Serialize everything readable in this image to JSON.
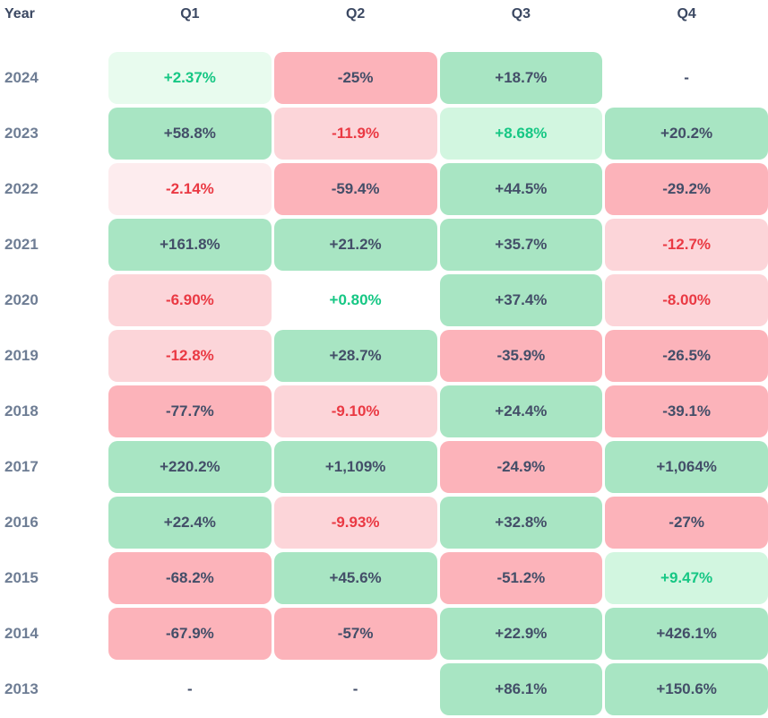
{
  "colors": {
    "positive_text": "#16c784",
    "negative_text": "#ea3943",
    "neutral_text": "#434e68",
    "header_text": "#3b4862",
    "year_text": "#6e7d94",
    "bg_green_strong": "#a8e5c3",
    "bg_green_light": "#d2f6e0",
    "bg_green_faint": "#e8fbee",
    "bg_red_strong": "#fcb3ba",
    "bg_red_light": "#fcd5d9",
    "bg_red_faint": "#fdecee"
  },
  "chart_data": {
    "type": "heatmap",
    "title": "",
    "row_header": "Year",
    "columns": [
      "Q1",
      "Q2",
      "Q3",
      "Q4"
    ],
    "value_unit": "percent",
    "color_scale": "green = positive, red = negative; background intensity grows with magnitude (|v|<1 none, <5 faint, <15 light, >=15 strong); dark text on strong cells, colored text on faint/light cells; '-' = no data",
    "rows": [
      {
        "year": "2024",
        "cells": [
          {
            "text": "+2.37%",
            "value": 2.37
          },
          {
            "text": "-25%",
            "value": -25
          },
          {
            "text": "+18.7%",
            "value": 18.7
          },
          {
            "text": "-",
            "value": null
          }
        ]
      },
      {
        "year": "2023",
        "cells": [
          {
            "text": "+58.8%",
            "value": 58.8
          },
          {
            "text": "-11.9%",
            "value": -11.9
          },
          {
            "text": "+8.68%",
            "value": 8.68
          },
          {
            "text": "+20.2%",
            "value": 20.2
          }
        ]
      },
      {
        "year": "2022",
        "cells": [
          {
            "text": "-2.14%",
            "value": -2.14
          },
          {
            "text": "-59.4%",
            "value": -59.4
          },
          {
            "text": "+44.5%",
            "value": 44.5
          },
          {
            "text": "-29.2%",
            "value": -29.2
          }
        ]
      },
      {
        "year": "2021",
        "cells": [
          {
            "text": "+161.8%",
            "value": 161.8
          },
          {
            "text": "+21.2%",
            "value": 21.2
          },
          {
            "text": "+35.7%",
            "value": 35.7
          },
          {
            "text": "-12.7%",
            "value": -12.7
          }
        ]
      },
      {
        "year": "2020",
        "cells": [
          {
            "text": "-6.90%",
            "value": -6.9
          },
          {
            "text": "+0.80%",
            "value": 0.8
          },
          {
            "text": "+37.4%",
            "value": 37.4
          },
          {
            "text": "-8.00%",
            "value": -8
          }
        ]
      },
      {
        "year": "2019",
        "cells": [
          {
            "text": "-12.8%",
            "value": -12.8
          },
          {
            "text": "+28.7%",
            "value": 28.7
          },
          {
            "text": "-35.9%",
            "value": -35.9
          },
          {
            "text": "-26.5%",
            "value": -26.5
          }
        ]
      },
      {
        "year": "2018",
        "cells": [
          {
            "text": "-77.7%",
            "value": -77.7
          },
          {
            "text": "-9.10%",
            "value": -9.1
          },
          {
            "text": "+24.4%",
            "value": 24.4
          },
          {
            "text": "-39.1%",
            "value": -39.1
          }
        ]
      },
      {
        "year": "2017",
        "cells": [
          {
            "text": "+220.2%",
            "value": 220.2
          },
          {
            "text": "+1,109%",
            "value": 1109
          },
          {
            "text": "-24.9%",
            "value": -24.9
          },
          {
            "text": "+1,064%",
            "value": 1064
          }
        ]
      },
      {
        "year": "2016",
        "cells": [
          {
            "text": "+22.4%",
            "value": 22.4
          },
          {
            "text": "-9.93%",
            "value": -9.93
          },
          {
            "text": "+32.8%",
            "value": 32.8
          },
          {
            "text": "-27%",
            "value": -27
          }
        ]
      },
      {
        "year": "2015",
        "cells": [
          {
            "text": "-68.2%",
            "value": -68.2
          },
          {
            "text": "+45.6%",
            "value": 45.6
          },
          {
            "text": "-51.2%",
            "value": -51.2
          },
          {
            "text": "+9.47%",
            "value": 9.47
          }
        ]
      },
      {
        "year": "2014",
        "cells": [
          {
            "text": "-67.9%",
            "value": -67.9
          },
          {
            "text": "-57%",
            "value": -57
          },
          {
            "text": "+22.9%",
            "value": 22.9
          },
          {
            "text": "+426.1%",
            "value": 426.1
          }
        ]
      },
      {
        "year": "2013",
        "cells": [
          {
            "text": "-",
            "value": null
          },
          {
            "text": "-",
            "value": null
          },
          {
            "text": "+86.1%",
            "value": 86.1
          },
          {
            "text": "+150.6%",
            "value": 150.6
          }
        ]
      }
    ]
  }
}
